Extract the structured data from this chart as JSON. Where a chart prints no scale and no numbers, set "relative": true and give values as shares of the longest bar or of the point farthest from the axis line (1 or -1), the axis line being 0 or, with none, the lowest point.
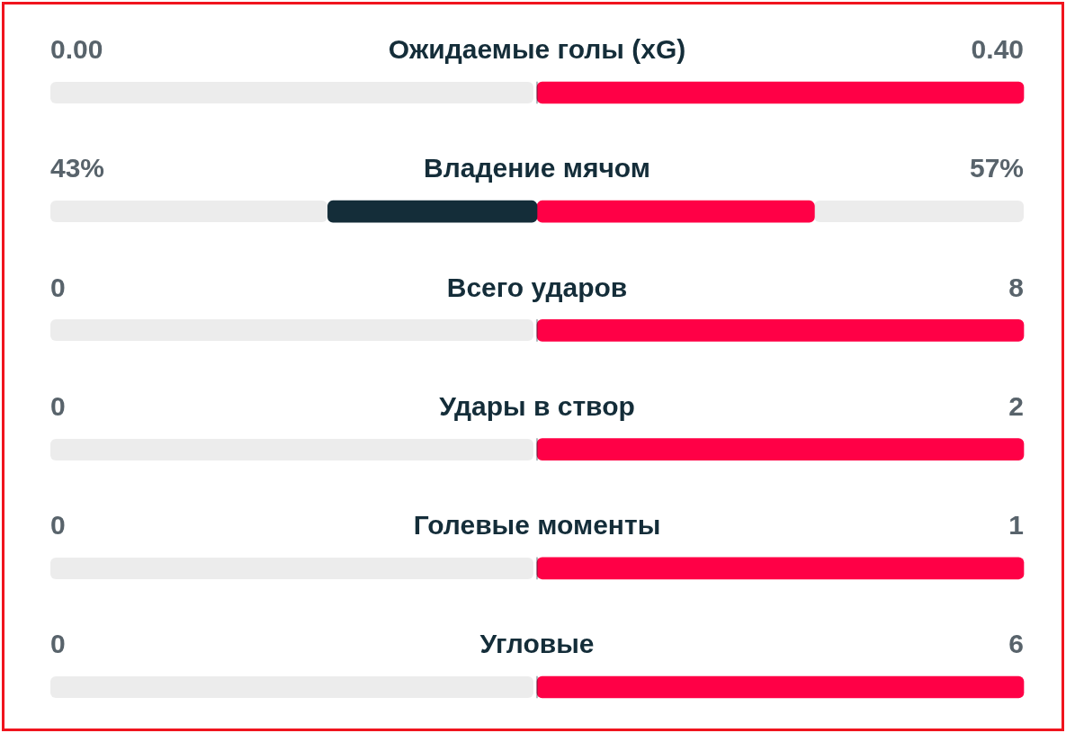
{
  "chart_data": {
    "type": "bar",
    "orientation": "horizontal",
    "relative": true,
    "categories": [
      "Ожидаемые голы (xG)",
      "Владение мячом",
      "Всего ударов",
      "Удары в створ",
      "Голевые моменты",
      "Угловые"
    ],
    "series": [
      {
        "color": "#142d39",
        "values": [
          0,
          -0.43,
          0,
          0,
          0,
          0
        ]
      },
      {
        "color": "#ff0046",
        "values": [
          1,
          0.57,
          1,
          1,
          1,
          1
        ]
      }
    ],
    "annotations": [
      "0.00",
      "0.40",
      "43%",
      "57%",
      "0",
      "8",
      "0",
      "2",
      "0",
      "1",
      "0",
      "6"
    ]
  }
}
